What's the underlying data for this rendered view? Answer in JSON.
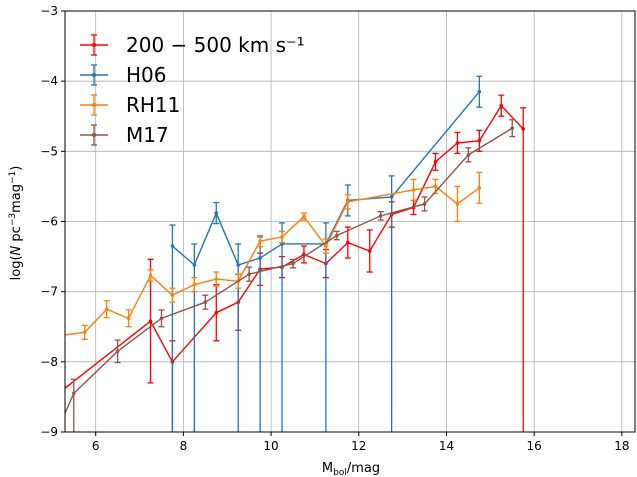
{
  "chart_data": {
    "type": "line",
    "xlabel": "M_bol/mag",
    "ylabel": "log(N pc^-3 mag^-1)",
    "xlim": [
      5.3,
      18.3
    ],
    "ylim": [
      -9,
      -3
    ],
    "xticks": [
      6,
      8,
      10,
      12,
      14,
      16,
      18
    ],
    "yticks": [
      -9,
      -8,
      -7,
      -6,
      -5,
      -4,
      -3
    ],
    "grid": true,
    "legend_position": "top-left",
    "series": [
      {
        "name": "200 − 500 km s⁻¹",
        "color": "#ff0000",
        "x": [
          5.25,
          7.25,
          7.75,
          8.75,
          9.25,
          9.75,
          10.25,
          10.75,
          11.25,
          11.75,
          12.25,
          12.75,
          13.25,
          13.75,
          14.25,
          14.75,
          15.25,
          15.75
        ],
        "y": [
          -8.4,
          -7.42,
          -8.0,
          -7.3,
          -7.15,
          -6.68,
          -6.65,
          -6.47,
          -6.6,
          -6.3,
          -6.42,
          -5.9,
          -5.8,
          -5.15,
          -4.88,
          -4.85,
          -4.35,
          -4.68
        ],
        "err": [
          0.32,
          0.88,
          0.3,
          0.4,
          0.4,
          0.23,
          0.15,
          0.12,
          0.2,
          0.22,
          0.3,
          0.18,
          0.1,
          0.12,
          0.15,
          0.15,
          0.15,
          0.3
        ],
        "err_lower_to_floor": [
          true,
          false,
          true,
          false,
          false,
          false,
          false,
          false,
          false,
          false,
          false,
          false,
          false,
          false,
          false,
          false,
          false,
          true
        ]
      },
      {
        "name": "H06",
        "color": "#1f77b4",
        "x": [
          7.75,
          8.25,
          8.75,
          9.25,
          9.75,
          10.25,
          11.25,
          11.75,
          12.75,
          14.75
        ],
        "y": [
          -6.35,
          -6.62,
          -5.88,
          -6.62,
          -6.52,
          -6.32,
          -6.32,
          -5.7,
          -5.65,
          -4.15
        ],
        "err": [
          0.3,
          0.3,
          0.15,
          0.3,
          0.3,
          0.3,
          0.3,
          0.22,
          0.3,
          0.22
        ],
        "err_lower_to_floor": [
          true,
          true,
          false,
          true,
          true,
          true,
          true,
          false,
          true,
          false
        ]
      },
      {
        "name": "RH11",
        "color": "#ff7f0e",
        "x": [
          5.25,
          5.75,
          6.25,
          6.75,
          7.25,
          7.75,
          8.25,
          8.75,
          9.25,
          9.75,
          10.25,
          10.75,
          11.25,
          11.75,
          13.25,
          13.75,
          14.25,
          14.75
        ],
        "y": [
          -7.62,
          -7.58,
          -7.25,
          -7.38,
          -6.77,
          -7.05,
          -6.9,
          -6.82,
          -6.85,
          -6.28,
          -6.22,
          -5.93,
          -6.35,
          -5.72,
          -5.55,
          -5.5,
          -5.75,
          -5.52
        ],
        "err": [
          0.12,
          0.1,
          0.12,
          0.12,
          0.08,
          0.1,
          0.1,
          0.1,
          0.1,
          0.08,
          0.08,
          0.05,
          0.1,
          0.1,
          0.15,
          0.1,
          0.25,
          0.22
        ],
        "err_lower_to_floor": [
          false,
          false,
          false,
          false,
          false,
          false,
          false,
          false,
          false,
          false,
          false,
          false,
          false,
          false,
          false,
          false,
          false,
          false
        ]
      },
      {
        "name": "M17",
        "color": "#8c564b",
        "x": [
          5.25,
          5.5,
          6.5,
          7.5,
          8.5,
          9.5,
          10.5,
          11.5,
          12.5,
          13.5,
          14.5,
          15.5
        ],
        "y": [
          -8.8,
          -8.45,
          -7.85,
          -7.38,
          -7.15,
          -6.75,
          -6.6,
          -6.2,
          -5.92,
          -5.75,
          -5.05,
          -4.67
        ],
        "err": [
          0.2,
          0.2,
          0.16,
          0.12,
          0.1,
          0.1,
          0.06,
          0.06,
          0.06,
          0.1,
          0.1,
          0.12
        ],
        "err_lower_to_floor": [
          true,
          true,
          false,
          false,
          false,
          false,
          false,
          false,
          false,
          false,
          false,
          false
        ]
      }
    ]
  }
}
